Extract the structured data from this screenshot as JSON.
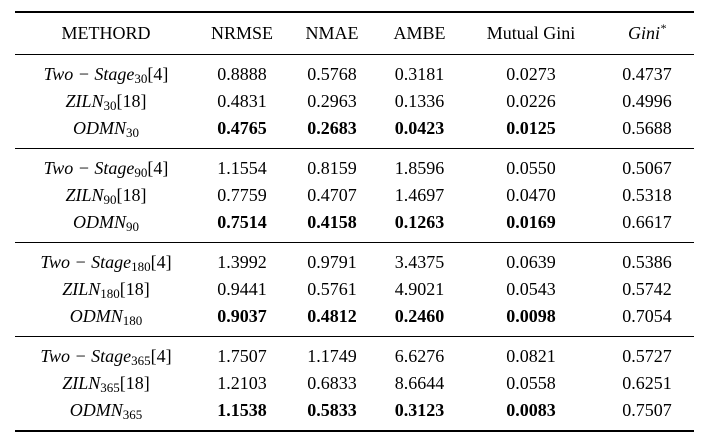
{
  "headers": [
    "METHORD",
    "NRMSE",
    "NMAE",
    "AMBE",
    "Mutual Gini",
    "Gini*"
  ],
  "groups": [
    {
      "rows": [
        {
          "name": "Two − Stage",
          "sub": "30",
          "ref": "[4]",
          "vals": [
            "0.8888",
            "0.5768",
            "0.3181",
            "0.0273",
            "0.4737"
          ],
          "bold": false
        },
        {
          "name": "ZILN",
          "sub": "30",
          "ref": "[18]",
          "vals": [
            "0.4831",
            "0.2963",
            "0.1336",
            "0.0226",
            "0.4996"
          ],
          "bold": false
        },
        {
          "name": "ODMN",
          "sub": "30",
          "ref": "",
          "vals": [
            "0.4765",
            "0.2683",
            "0.0423",
            "0.0125",
            "0.5688"
          ],
          "bold": true
        }
      ]
    },
    {
      "rows": [
        {
          "name": "Two − Stage",
          "sub": "90",
          "ref": "[4]",
          "vals": [
            "1.1554",
            "0.8159",
            "1.8596",
            "0.0550",
            "0.5067"
          ],
          "bold": false
        },
        {
          "name": "ZILN",
          "sub": "90",
          "ref": "[18]",
          "vals": [
            "0.7759",
            "0.4707",
            "1.4697",
            "0.0470",
            "0.5318"
          ],
          "bold": false
        },
        {
          "name": "ODMN",
          "sub": "90",
          "ref": "",
          "vals": [
            "0.7514",
            "0.4158",
            "0.1263",
            "0.0169",
            "0.6617"
          ],
          "bold": true
        }
      ]
    },
    {
      "rows": [
        {
          "name": "Two − Stage",
          "sub": "180",
          "ref": "[4]",
          "vals": [
            "1.3992",
            "0.9791",
            "3.4375",
            "0.0639",
            "0.5386"
          ],
          "bold": false
        },
        {
          "name": "ZILN",
          "sub": "180",
          "ref": "[18]",
          "vals": [
            "0.9441",
            "0.5761",
            "4.9021",
            "0.0543",
            "0.5742"
          ],
          "bold": false
        },
        {
          "name": "ODMN",
          "sub": "180",
          "ref": "",
          "vals": [
            "0.9037",
            "0.4812",
            "0.2460",
            "0.0098",
            "0.7054"
          ],
          "bold": true
        }
      ]
    },
    {
      "rows": [
        {
          "name": "Two − Stage",
          "sub": "365",
          "ref": "[4]",
          "vals": [
            "1.7507",
            "1.1749",
            "6.6276",
            "0.0821",
            "0.5727"
          ],
          "bold": false
        },
        {
          "name": "ZILN",
          "sub": "365",
          "ref": "[18]",
          "vals": [
            "1.2103",
            "0.6833",
            "8.6644",
            "0.0558",
            "0.6251"
          ],
          "bold": false
        },
        {
          "name": "ODMN",
          "sub": "365",
          "ref": "",
          "vals": [
            "1.1538",
            "0.5833",
            "0.3123",
            "0.0083",
            "0.7507"
          ],
          "bold": true
        }
      ]
    }
  ]
}
